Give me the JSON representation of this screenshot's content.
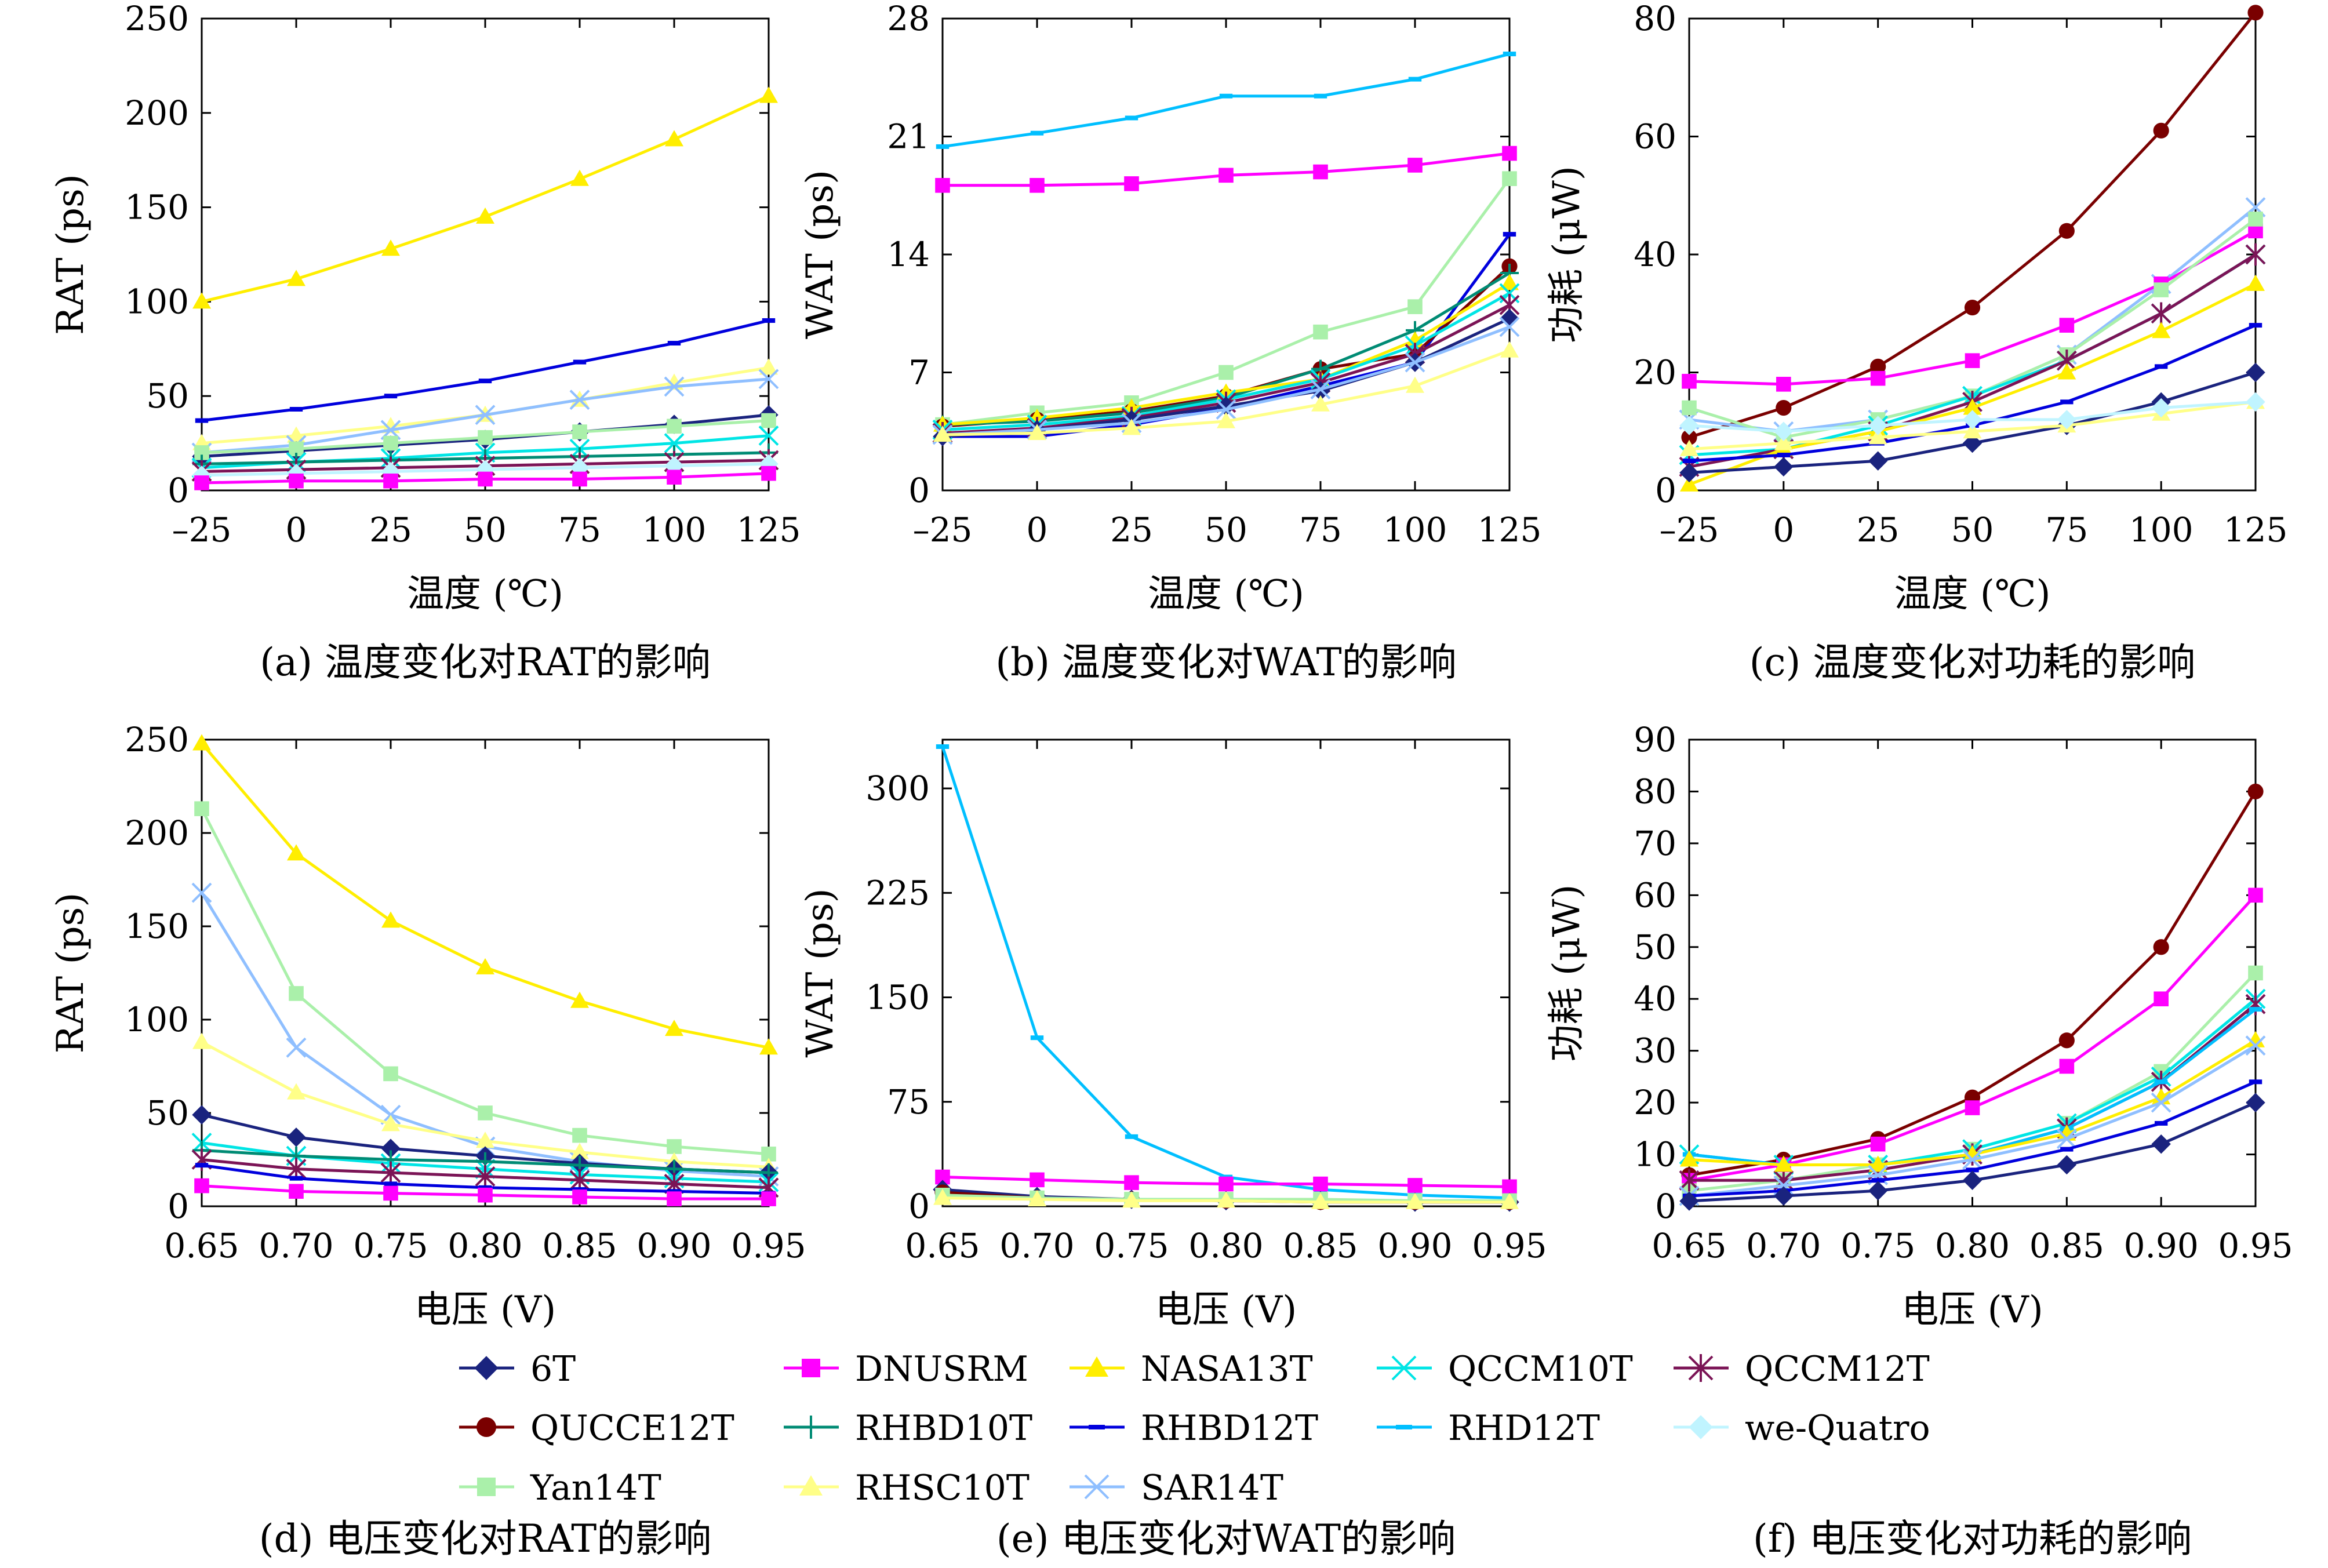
{
  "colors": {
    "6T": "#1a237e",
    "DNUSRM": "#ff00ff",
    "NASA13T": "#ffee00",
    "QCCM10T": "#00e5e5",
    "QCCM12T": "#7b1456",
    "QUCCE12T": "#7a0000",
    "RHBD10T": "#008b74",
    "RHBD12T": "#0000dd",
    "RHD12T": "#00bfff",
    "we-Quatro": "#c0f4ff",
    "Yan14T": "#aaf0aa",
    "RHSC10T": "#ffff88",
    "SAR14T": "#8fbfff"
  },
  "legend": {
    "entries": [
      {
        "name": "6T",
        "marker": "diamond-filled"
      },
      {
        "name": "DNUSRM",
        "marker": "square-filled"
      },
      {
        "name": "NASA13T",
        "marker": "triangle-filled"
      },
      {
        "name": "QCCM10T",
        "marker": "x"
      },
      {
        "name": "QCCM12T",
        "marker": "asterisk"
      },
      {
        "name": "QUCCE12T",
        "marker": "circle-filled"
      },
      {
        "name": "RHBD10T",
        "marker": "plus"
      },
      {
        "name": "RHBD12T",
        "marker": "dash"
      },
      {
        "name": "RHD12T",
        "marker": "dash"
      },
      {
        "name": "we-Quatro",
        "marker": "diamond-filled"
      },
      {
        "name": "Yan14T",
        "marker": "square-filled"
      },
      {
        "name": "RHSC10T",
        "marker": "triangle-filled"
      },
      {
        "name": "SAR14T",
        "marker": "x"
      }
    ]
  },
  "chart_data": [
    {
      "id": "a",
      "type": "line",
      "caption": "(a) 温度变化对RAT的影响",
      "xlabel": "温度 (℃)",
      "ylabel": "RAT (ps)",
      "x": [
        -25,
        0,
        25,
        50,
        75,
        100,
        125
      ],
      "xtick_labels": [
        "–25",
        "0",
        "25",
        "50",
        "75",
        "100",
        "125"
      ],
      "xlim": [
        -25,
        125
      ],
      "ylim": [
        0,
        250
      ],
      "yticks": [
        0,
        50,
        100,
        150,
        200,
        250
      ],
      "series": [
        {
          "name": "NASA13T",
          "values": [
            100,
            112,
            128,
            145,
            165,
            186,
            209
          ]
        },
        {
          "name": "RHBD12T",
          "values": [
            37,
            43,
            50,
            58,
            68,
            78,
            90
          ]
        },
        {
          "name": "RHSC10T",
          "values": [
            25,
            29,
            34,
            40,
            48,
            57,
            65
          ]
        },
        {
          "name": "SAR14T",
          "values": [
            20,
            24,
            32,
            40,
            48,
            55,
            59
          ]
        },
        {
          "name": "6T",
          "values": [
            18,
            21,
            24,
            27,
            31,
            35,
            40
          ]
        },
        {
          "name": "Yan14T",
          "values": [
            20,
            22,
            25,
            28,
            31,
            34,
            37
          ]
        },
        {
          "name": "QCCM10T",
          "values": [
            12,
            15,
            17,
            20,
            22,
            25,
            29
          ]
        },
        {
          "name": "RHBD10T",
          "values": [
            14,
            15,
            16,
            17,
            18,
            19,
            20
          ]
        },
        {
          "name": "QCCM12T",
          "values": [
            10,
            11,
            12,
            13,
            14,
            15,
            16
          ]
        },
        {
          "name": "we-Quatro",
          "values": [
            8,
            9,
            10,
            11,
            12,
            13,
            14
          ]
        },
        {
          "name": "DNUSRM",
          "values": [
            4,
            5,
            5,
            6,
            6,
            7,
            9
          ]
        }
      ]
    },
    {
      "id": "b",
      "type": "line",
      "caption": "(b) 温度变化对WAT的影响",
      "xlabel": "温度 (℃)",
      "ylabel": "WAT (ps)",
      "x": [
        -25,
        0,
        25,
        50,
        75,
        100,
        125
      ],
      "xtick_labels": [
        "–25",
        "0",
        "25",
        "50",
        "75",
        "100",
        "125"
      ],
      "xlim": [
        -25,
        125
      ],
      "ylim": [
        0,
        28
      ],
      "yticks": [
        0,
        7,
        14,
        21,
        28
      ],
      "series": [
        {
          "name": "RHD12T",
          "values": [
            20.4,
            21.2,
            22.1,
            23.4,
            23.4,
            24.4,
            25.9
          ]
        },
        {
          "name": "DNUSRM",
          "values": [
            18.1,
            18.1,
            18.2,
            18.7,
            18.9,
            19.3,
            20.0
          ]
        },
        {
          "name": "Yan14T",
          "values": [
            3.9,
            4.6,
            5.2,
            7.0,
            9.4,
            10.9,
            18.5
          ]
        },
        {
          "name": "RHBD12T",
          "values": [
            3.2,
            3.2,
            3.9,
            4.9,
            6.2,
            7.6,
            15.2
          ]
        },
        {
          "name": "QUCCE12T",
          "values": [
            3.8,
            4.2,
            4.7,
            5.6,
            7.2,
            8.1,
            13.3
          ]
        },
        {
          "name": "RHBD10T",
          "values": [
            3.9,
            4.1,
            4.6,
            5.5,
            7.2,
            9.5,
            12.9
          ]
        },
        {
          "name": "NASA13T",
          "values": [
            3.9,
            4.3,
            4.9,
            5.8,
            6.6,
            8.9,
            12.3
          ]
        },
        {
          "name": "QCCM10T",
          "values": [
            3.6,
            3.9,
            4.4,
            5.4,
            6.6,
            8.6,
            11.7
          ]
        },
        {
          "name": "QCCM12T",
          "values": [
            3.4,
            3.7,
            4.3,
            5.2,
            6.4,
            8.1,
            11.0
          ]
        },
        {
          "name": "6T",
          "values": [
            3.2,
            3.6,
            4.2,
            5.0,
            5.9,
            7.6,
            10.2
          ]
        },
        {
          "name": "SAR14T",
          "values": [
            3.3,
            3.6,
            4.0,
            4.8,
            6.0,
            7.6,
            9.7
          ]
        },
        {
          "name": "RHSC10T",
          "values": [
            3.3,
            3.4,
            3.7,
            4.1,
            5.1,
            6.2,
            8.3
          ]
        }
      ]
    },
    {
      "id": "c",
      "type": "line",
      "caption": "(c) 温度变化对功耗的影响",
      "xlabel": "温度 (℃)",
      "ylabel": "功耗 (μW)",
      "x": [
        -25,
        0,
        25,
        50,
        75,
        100,
        125
      ],
      "xtick_labels": [
        "–25",
        "0",
        "25",
        "50",
        "75",
        "100",
        "125"
      ],
      "xlim": [
        -25,
        125
      ],
      "ylim": [
        0,
        80
      ],
      "yticks": [
        0,
        20,
        40,
        60,
        80
      ],
      "series": [
        {
          "name": "QUCCE12T",
          "values": [
            9,
            14,
            21,
            31,
            44,
            61,
            81
          ]
        },
        {
          "name": "SAR14T",
          "values": [
            12,
            10,
            12,
            16,
            23,
            35,
            48
          ]
        },
        {
          "name": "DNUSRM",
          "values": [
            18.5,
            18,
            19,
            22,
            28,
            35,
            44
          ]
        },
        {
          "name": "Yan14T",
          "values": [
            14,
            9,
            12,
            16,
            23,
            34,
            46
          ]
        },
        {
          "name": "QCCM10T",
          "values": [
            6,
            7,
            11,
            16,
            22,
            30,
            40
          ]
        },
        {
          "name": "QCCM12T",
          "values": [
            4,
            7,
            10,
            15,
            22,
            30,
            40
          ]
        },
        {
          "name": "NASA13T",
          "values": [
            1,
            7,
            10,
            14,
            20,
            27,
            35
          ]
        },
        {
          "name": "RHBD12T",
          "values": [
            5,
            6,
            8,
            11,
            15,
            21,
            28
          ]
        },
        {
          "name": "6T",
          "values": [
            3,
            4,
            5,
            8,
            11,
            15,
            20
          ]
        },
        {
          "name": "RHSC10T",
          "values": [
            7,
            8,
            9,
            10,
            11,
            13,
            15
          ]
        },
        {
          "name": "we-Quatro",
          "values": [
            11,
            10,
            11,
            12,
            12,
            14,
            15
          ]
        }
      ]
    },
    {
      "id": "d",
      "type": "line",
      "caption": "(d) 电压变化对RAT的影响",
      "xlabel": "电压 (V)",
      "ylabel": "RAT (ps)",
      "x": [
        0.65,
        0.7,
        0.75,
        0.8,
        0.85,
        0.9,
        0.95
      ],
      "xtick_labels": [
        "0.65",
        "0.70",
        "0.75",
        "0.80",
        "0.85",
        "0.90",
        "0.95"
      ],
      "xlim": [
        0.65,
        0.95
      ],
      "ylim": [
        0,
        250
      ],
      "yticks": [
        0,
        50,
        100,
        150,
        200,
        250
      ],
      "series": [
        {
          "name": "NASA13T",
          "values": [
            248,
            189,
            153,
            128,
            110,
            95,
            85
          ]
        },
        {
          "name": "Yan14T",
          "values": [
            213,
            114,
            71,
            50,
            38,
            32,
            28
          ]
        },
        {
          "name": "SAR14T",
          "values": [
            168,
            85,
            49,
            32,
            24,
            19,
            16
          ]
        },
        {
          "name": "RHSC10T",
          "values": [
            88,
            61,
            44,
            35,
            29,
            24,
            21
          ]
        },
        {
          "name": "6T",
          "values": [
            49,
            37,
            31,
            27,
            23,
            20,
            18
          ]
        },
        {
          "name": "QCCM10T",
          "values": [
            34,
            27,
            23,
            20,
            17,
            15,
            13
          ]
        },
        {
          "name": "RHBD10T",
          "values": [
            30,
            27,
            25,
            24,
            22,
            20,
            18
          ]
        },
        {
          "name": "QCCM12T",
          "values": [
            25,
            20,
            18,
            16,
            14,
            12,
            10
          ]
        },
        {
          "name": "RHBD12T",
          "values": [
            22,
            15,
            12,
            10,
            9,
            8,
            7
          ]
        },
        {
          "name": "DNUSRM",
          "values": [
            11,
            8,
            7,
            6,
            5,
            4,
            4
          ]
        }
      ]
    },
    {
      "id": "e",
      "type": "line",
      "caption": "(e) 电压变化对WAT的影响",
      "xlabel": "电压 (V)",
      "ylabel": "WAT (ps)",
      "x": [
        0.65,
        0.7,
        0.75,
        0.8,
        0.85,
        0.9,
        0.95
      ],
      "xtick_labels": [
        "0.65",
        "0.70",
        "0.75",
        "0.80",
        "0.85",
        "0.90",
        "0.95"
      ],
      "xlim": [
        0.65,
        0.95
      ],
      "ylim": [
        0,
        335
      ],
      "yticks": [
        0,
        75,
        150,
        225,
        300
      ],
      "series": [
        {
          "name": "RHD12T",
          "values": [
            330,
            121,
            50,
            21,
            12,
            8,
            6
          ]
        },
        {
          "name": "DNUSRM",
          "values": [
            21,
            19,
            17,
            16,
            16,
            15,
            14
          ]
        },
        {
          "name": "6T",
          "values": [
            12,
            7,
            5,
            4,
            4,
            3,
            3
          ]
        },
        {
          "name": "QUCCE12T",
          "values": [
            10,
            6,
            5,
            4,
            3,
            3,
            3
          ]
        },
        {
          "name": "Yan14T",
          "values": [
            8,
            6,
            5,
            5,
            5,
            4,
            4
          ]
        },
        {
          "name": "RHSC10T",
          "values": [
            6,
            5,
            4,
            4,
            3,
            3,
            3
          ]
        }
      ]
    },
    {
      "id": "f",
      "type": "line",
      "caption": "(f) 电压变化对功耗的影响",
      "xlabel": "电压 (V)",
      "ylabel": "功耗 (μW)",
      "x": [
        0.65,
        0.7,
        0.75,
        0.8,
        0.85,
        0.9,
        0.95
      ],
      "xtick_labels": [
        "0.65",
        "0.70",
        "0.75",
        "0.80",
        "0.85",
        "0.90",
        "0.95"
      ],
      "xlim": [
        0.65,
        0.95
      ],
      "ylim": [
        0,
        90
      ],
      "yticks": [
        0,
        10,
        20,
        30,
        40,
        50,
        60,
        70,
        80,
        90
      ],
      "series": [
        {
          "name": "QUCCE12T",
          "values": [
            6,
            9,
            13,
            21,
            32,
            50,
            80
          ]
        },
        {
          "name": "DNUSRM",
          "values": [
            5,
            8,
            12,
            19,
            27,
            40,
            60
          ]
        },
        {
          "name": "Yan14T",
          "values": [
            3,
            5,
            8,
            11,
            16,
            26,
            45
          ]
        },
        {
          "name": "QCCM10T",
          "values": [
            10,
            8,
            8,
            11,
            16,
            25,
            40
          ]
        },
        {
          "name": "QCCM12T",
          "values": [
            5,
            5,
            7,
            10,
            15,
            24,
            39
          ]
        },
        {
          "name": "RHD12T",
          "values": [
            10,
            8,
            8,
            10,
            15,
            24,
            38
          ]
        },
        {
          "name": "NASA13T",
          "values": [
            9,
            8,
            8,
            10,
            14,
            21,
            32
          ]
        },
        {
          "name": "SAR14T",
          "values": [
            2,
            4,
            6,
            9,
            13,
            20,
            31
          ]
        },
        {
          "name": "RHBD12T",
          "values": [
            2,
            3,
            5,
            7,
            11,
            16,
            24
          ]
        },
        {
          "name": "6T",
          "values": [
            1,
            2,
            3,
            5,
            8,
            12,
            20
          ]
        }
      ]
    }
  ]
}
